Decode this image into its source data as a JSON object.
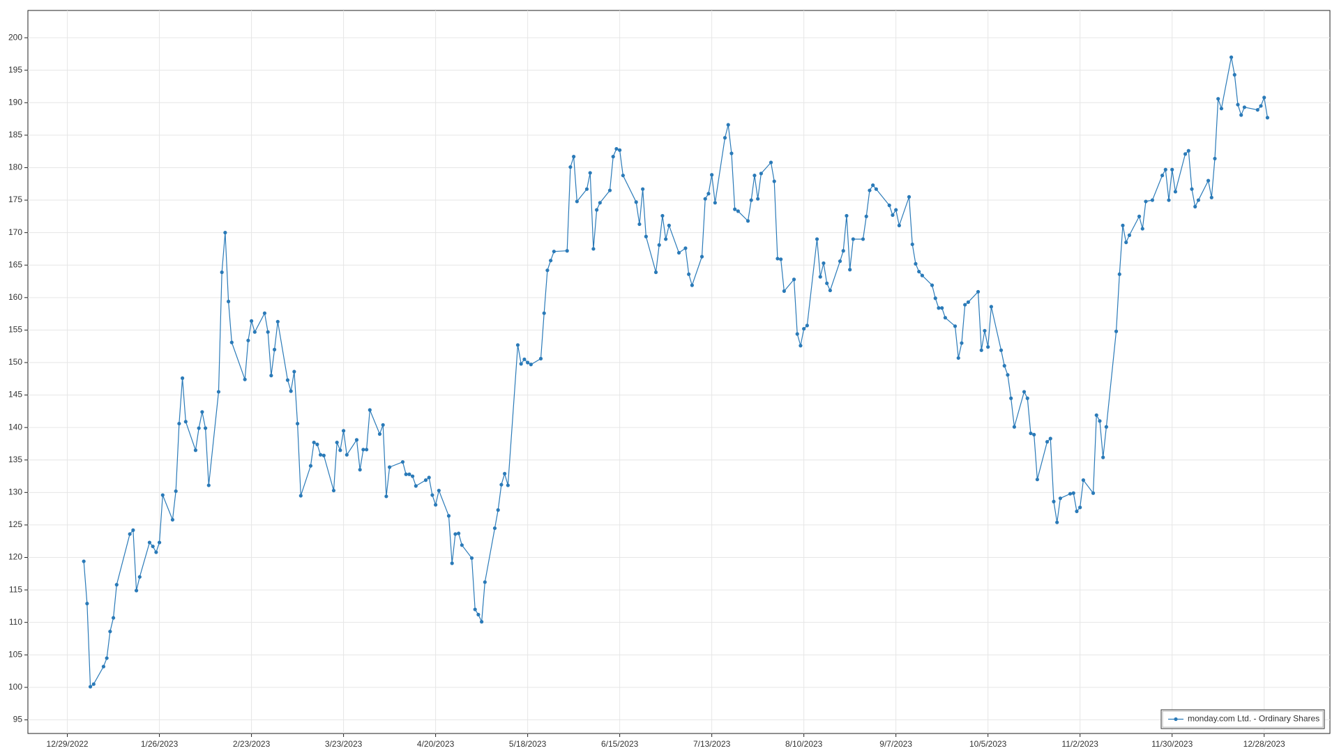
{
  "chart_data": {
    "type": "line",
    "x": [
      "1/3/2023",
      "1/4/2023",
      "1/5/2023",
      "1/6/2023",
      "1/9/2023",
      "1/10/2023",
      "1/11/2023",
      "1/12/2023",
      "1/13/2023",
      "1/17/2023",
      "1/18/2023",
      "1/19/2023",
      "1/20/2023",
      "1/23/2023",
      "1/24/2023",
      "1/25/2023",
      "1/26/2023",
      "1/27/2023",
      "1/30/2023",
      "1/31/2023",
      "2/1/2023",
      "2/2/2023",
      "2/3/2023",
      "2/6/2023",
      "2/7/2023",
      "2/8/2023",
      "2/9/2023",
      "2/10/2023",
      "2/13/2023",
      "2/14/2023",
      "2/15/2023",
      "2/16/2023",
      "2/17/2023",
      "2/21/2023",
      "2/22/2023",
      "2/23/2023",
      "2/24/2023",
      "2/27/2023",
      "2/28/2023",
      "3/1/2023",
      "3/2/2023",
      "3/3/2023",
      "3/6/2023",
      "3/7/2023",
      "3/8/2023",
      "3/9/2023",
      "3/10/2023",
      "3/13/2023",
      "3/14/2023",
      "3/15/2023",
      "3/16/2023",
      "3/17/2023",
      "3/20/2023",
      "3/21/2023",
      "3/22/2023",
      "3/23/2023",
      "3/24/2023",
      "3/27/2023",
      "3/28/2023",
      "3/29/2023",
      "3/30/2023",
      "3/31/2023",
      "4/3/2023",
      "4/4/2023",
      "4/5/2023",
      "4/6/2023",
      "4/10/2023",
      "4/11/2023",
      "4/12/2023",
      "4/13/2023",
      "4/14/2023",
      "4/17/2023",
      "4/18/2023",
      "4/19/2023",
      "4/20/2023",
      "4/21/2023",
      "4/24/2023",
      "4/25/2023",
      "4/26/2023",
      "4/27/2023",
      "4/28/2023",
      "5/1/2023",
      "5/2/2023",
      "5/3/2023",
      "5/4/2023",
      "5/5/2023",
      "5/8/2023",
      "5/9/2023",
      "5/10/2023",
      "5/11/2023",
      "5/12/2023",
      "5/15/2023",
      "5/16/2023",
      "5/17/2023",
      "5/18/2023",
      "5/19/2023",
      "5/22/2023",
      "5/23/2023",
      "5/24/2023",
      "5/25/2023",
      "5/26/2023",
      "5/30/2023",
      "5/31/2023",
      "6/1/2023",
      "6/2/2023",
      "6/5/2023",
      "6/6/2023",
      "6/7/2023",
      "6/8/2023",
      "6/9/2023",
      "6/12/2023",
      "6/13/2023",
      "6/14/2023",
      "6/15/2023",
      "6/16/2023",
      "6/20/2023",
      "6/21/2023",
      "6/22/2023",
      "6/23/2023",
      "6/26/2023",
      "6/27/2023",
      "6/28/2023",
      "6/29/2023",
      "6/30/2023",
      "7/3/2023",
      "7/5/2023",
      "7/6/2023",
      "7/7/2023",
      "7/10/2023",
      "7/11/2023",
      "7/12/2023",
      "7/13/2023",
      "7/14/2023",
      "7/17/2023",
      "7/18/2023",
      "7/19/2023",
      "7/20/2023",
      "7/21/2023",
      "7/24/2023",
      "7/25/2023",
      "7/26/2023",
      "7/27/2023",
      "7/28/2023",
      "7/31/2023",
      "8/1/2023",
      "8/2/2023",
      "8/3/2023",
      "8/4/2023",
      "8/7/2023",
      "8/8/2023",
      "8/9/2023",
      "8/10/2023",
      "8/11/2023",
      "8/14/2023",
      "8/15/2023",
      "8/16/2023",
      "8/17/2023",
      "8/18/2023",
      "8/21/2023",
      "8/22/2023",
      "8/23/2023",
      "8/24/2023",
      "8/25/2023",
      "8/28/2023",
      "8/29/2023",
      "8/30/2023",
      "8/31/2023",
      "9/1/2023",
      "9/5/2023",
      "9/6/2023",
      "9/7/2023",
      "9/8/2023",
      "9/11/2023",
      "9/12/2023",
      "9/13/2023",
      "9/14/2023",
      "9/15/2023",
      "9/18/2023",
      "9/19/2023",
      "9/20/2023",
      "9/21/2023",
      "9/22/2023",
      "9/25/2023",
      "9/26/2023",
      "9/27/2023",
      "9/28/2023",
      "9/29/2023",
      "10/2/2023",
      "10/3/2023",
      "10/4/2023",
      "10/5/2023",
      "10/6/2023",
      "10/9/2023",
      "10/10/2023",
      "10/11/2023",
      "10/12/2023",
      "10/13/2023",
      "10/16/2023",
      "10/17/2023",
      "10/18/2023",
      "10/19/2023",
      "10/20/2023",
      "10/23/2023",
      "10/24/2023",
      "10/25/2023",
      "10/26/2023",
      "10/27/2023",
      "10/30/2023",
      "10/31/2023",
      "11/1/2023",
      "11/2/2023",
      "11/3/2023",
      "11/6/2023",
      "11/7/2023",
      "11/8/2023",
      "11/9/2023",
      "11/10/2023",
      "11/13/2023",
      "11/14/2023",
      "11/15/2023",
      "11/16/2023",
      "11/17/2023",
      "11/20/2023",
      "11/21/2023",
      "11/22/2023",
      "11/24/2023",
      "11/27/2023",
      "11/28/2023",
      "11/29/2023",
      "11/30/2023",
      "12/1/2023",
      "12/4/2023",
      "12/5/2023",
      "12/6/2023",
      "12/7/2023",
      "12/8/2023",
      "12/11/2023",
      "12/12/2023",
      "12/13/2023",
      "12/14/2023",
      "12/15/2023",
      "12/18/2023",
      "12/19/2023",
      "12/20/2023",
      "12/21/2023",
      "12/22/2023",
      "12/26/2023",
      "12/27/2023",
      "12/28/2023",
      "12/29/2023"
    ],
    "series": [
      {
        "name": "monday.com Ltd. - Ordinary Shares",
        "color": "#2a7ab8",
        "values": [
          119.4,
          112.9,
          100.1,
          100.5,
          103.2,
          104.5,
          108.6,
          110.7,
          115.8,
          123.6,
          124.2,
          114.9,
          117.0,
          122.3,
          121.7,
          120.8,
          122.3,
          129.6,
          125.8,
          130.2,
          140.6,
          147.6,
          140.9,
          136.5,
          139.9,
          142.4,
          139.9,
          131.1,
          145.5,
          163.9,
          170.0,
          159.4,
          153.1,
          147.4,
          153.4,
          156.4,
          154.7,
          157.6,
          154.7,
          148.0,
          152.0,
          156.3,
          147.3,
          145.6,
          148.6,
          140.6,
          129.5,
          134.1,
          137.7,
          137.4,
          135.8,
          135.7,
          130.3,
          137.7,
          136.5,
          139.5,
          135.8,
          138.1,
          133.5,
          136.6,
          136.6,
          142.7,
          139.0,
          140.4,
          129.4,
          133.9,
          134.7,
          132.8,
          132.8,
          132.5,
          131.0,
          131.9,
          132.3,
          129.6,
          128.1,
          130.3,
          126.4,
          119.1,
          123.6,
          123.7,
          121.9,
          119.9,
          112.0,
          111.2,
          110.1,
          116.2,
          124.5,
          127.3,
          131.2,
          132.9,
          131.1,
          152.7,
          149.8,
          150.5,
          150.0,
          149.7,
          150.6,
          157.6,
          164.2,
          165.7,
          167.1,
          167.2,
          180.1,
          181.7,
          174.8,
          176.7,
          179.2,
          167.5,
          173.5,
          174.6,
          176.5,
          181.7,
          182.9,
          182.7,
          178.8,
          174.7,
          171.3,
          176.7,
          169.4,
          163.9,
          168.1,
          172.6,
          169.0,
          171.1,
          166.9,
          167.6,
          163.6,
          161.9,
          166.3,
          175.2,
          176.0,
          178.9,
          174.6,
          184.6,
          186.6,
          182.2,
          173.6,
          173.3,
          171.8,
          175.0,
          178.8,
          175.2,
          179.1,
          180.8,
          177.9,
          166.0,
          165.9,
          161.0,
          162.8,
          154.4,
          152.6,
          155.2,
          155.7,
          169.0,
          163.2,
          165.3,
          162.2,
          161.1,
          165.6,
          167.2,
          172.6,
          164.3,
          169.0,
          169.0,
          172.5,
          176.5,
          177.3,
          176.7,
          174.2,
          172.7,
          173.5,
          171.1,
          175.5,
          168.2,
          165.2,
          164.0,
          163.4,
          161.9,
          159.9,
          158.4,
          158.4,
          156.9,
          155.6,
          150.7,
          153.0,
          158.9,
          159.3,
          160.9,
          151.9,
          154.9,
          152.4,
          158.6,
          151.9,
          149.5,
          148.1,
          144.5,
          140.1,
          145.5,
          144.5,
          139.1,
          138.9,
          132.0,
          137.8,
          138.3,
          128.6,
          125.4,
          129.1,
          129.8,
          129.9,
          127.1,
          127.7,
          131.9,
          129.9,
          141.9,
          141.0,
          135.4,
          140.1,
          154.8,
          163.6,
          171.1,
          168.5,
          169.6,
          172.5,
          170.6,
          174.8,
          175.0,
          178.8,
          179.7,
          175.0,
          179.7,
          176.3,
          182.1,
          182.6,
          176.7,
          174.0,
          175.0,
          178.0,
          175.4,
          181.4,
          190.6,
          189.1,
          197.0,
          194.3,
          189.7,
          188.1,
          189.3,
          188.9,
          189.5,
          190.8,
          187.7
        ]
      }
    ],
    "xlim": [
      "12/17/2022",
      "1/17/2024"
    ],
    "xticks": [
      "12/29/2022",
      "1/26/2023",
      "2/23/2023",
      "3/23/2023",
      "4/20/2023",
      "5/18/2023",
      "6/15/2023",
      "7/13/2023",
      "8/10/2023",
      "9/7/2023",
      "10/5/2023",
      "11/2/2023",
      "11/30/2023",
      "12/28/2023"
    ],
    "ylim": [
      92.9,
      204.2
    ],
    "yticks": [
      95,
      100,
      105,
      110,
      115,
      120,
      125,
      130,
      135,
      140,
      145,
      150,
      155,
      160,
      165,
      170,
      175,
      180,
      185,
      190,
      195,
      200
    ],
    "grid": true,
    "legend": "lower right"
  }
}
